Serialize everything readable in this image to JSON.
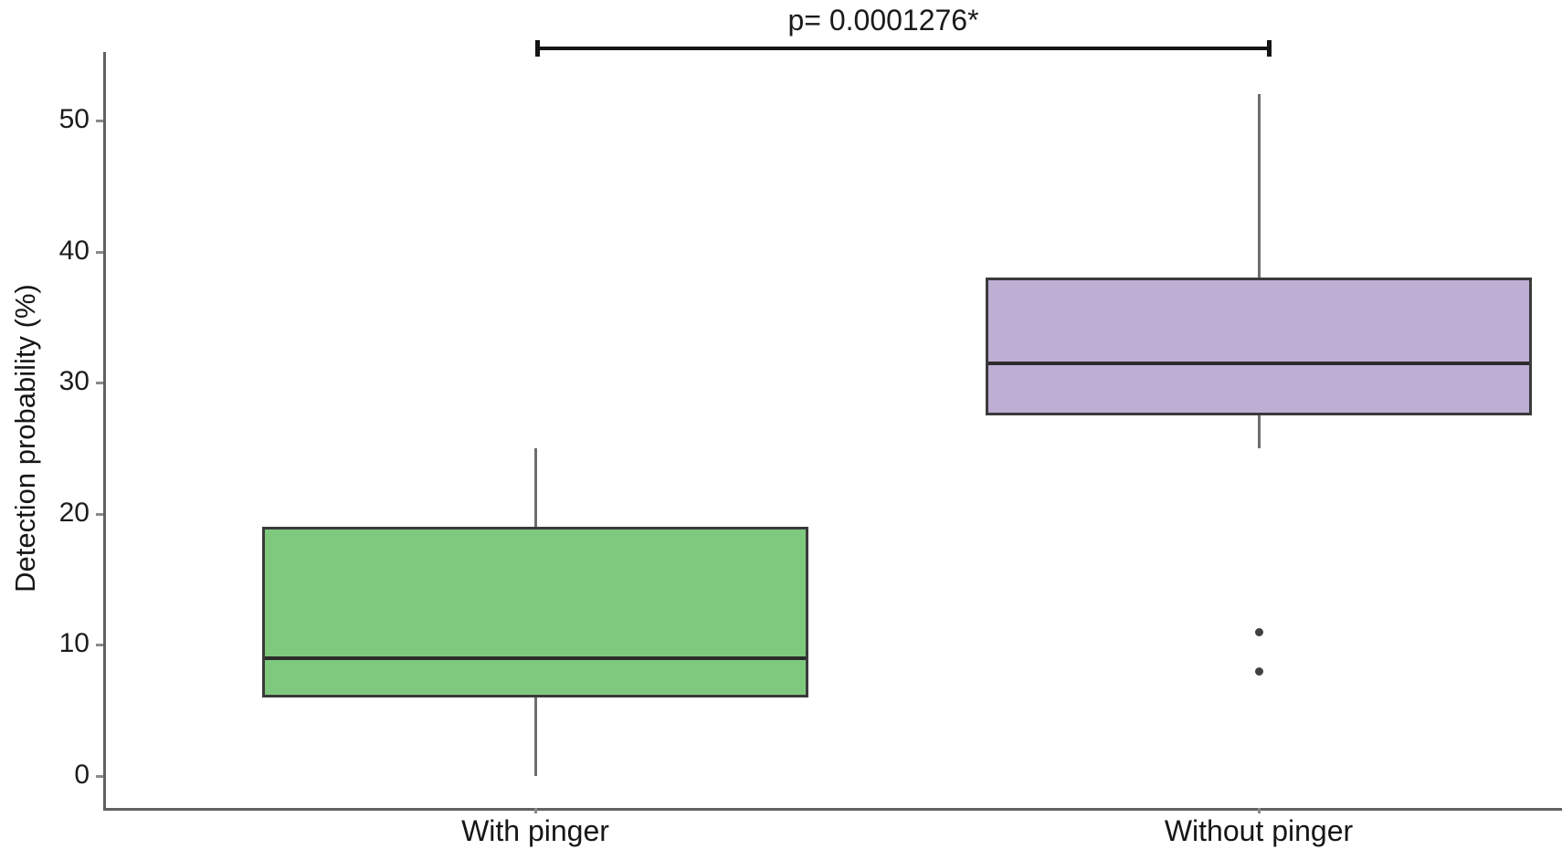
{
  "chart_data": {
    "type": "box",
    "title": "",
    "ylabel": "Detection probability (%)",
    "xlabel": "",
    "categories": [
      "With pinger",
      "Without pinger"
    ],
    "yticks": [
      0,
      10,
      20,
      30,
      40,
      50
    ],
    "ylim": [
      -2.5,
      55
    ],
    "grid": false,
    "legend": "none",
    "series": [
      {
        "name": "With pinger",
        "color": "#7FC97F",
        "whisker_low": 0,
        "q1": 6,
        "median": 9,
        "q3": 19,
        "whisker_high": 25,
        "outliers": []
      },
      {
        "name": "Without pinger",
        "color": "#BEAED4",
        "whisker_low": 25,
        "q1": 27.5,
        "median": 31.5,
        "q3": 38,
        "whisker_high": 52,
        "outliers": [
          11,
          8
        ]
      }
    ],
    "annotation": {
      "text": "p= 0.0001276*",
      "significant": true,
      "connects": [
        "With pinger",
        "Without pinger"
      ]
    }
  },
  "colors": {
    "box1_fill": "#7FC97F",
    "box2_fill": "#BEAED4",
    "box_border": "#3a3a3a",
    "median_line": "#2c2c2c",
    "whisker": "#6e6e6e",
    "axis": "#616161",
    "bracket": "#141414",
    "text": "#1a1a1a",
    "background": "#ffffff"
  }
}
